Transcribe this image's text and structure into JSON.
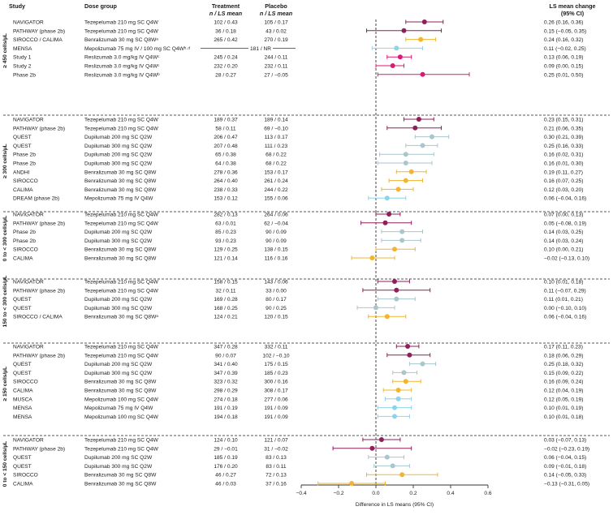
{
  "headers": {
    "study": "Study",
    "dose": "Dose group",
    "treatment_line1": "Treatment",
    "treatment_line2": "n / LS mean",
    "placebo_line1": "Placebo",
    "placebo_line2": "n / LS mean",
    "lsmc_line1": "LS mean change",
    "lsmc_line2": "(95% CI)"
  },
  "colors": {
    "tezepelumab": "#8e1f5a",
    "dupilumab": "#a8c6cc",
    "benralizumab": "#f2b530",
    "mepolizumab": "#8fd3e8",
    "reslizumab": "#d81b72"
  },
  "chart_data": {
    "type": "forest",
    "xlabel": "Difference in LS means (95% CI)",
    "xlim": [
      -0.4,
      0.6
    ],
    "xticks": [
      "−0.4",
      "−0.2",
      "0.0",
      "0.2",
      "0.4",
      "0.6"
    ],
    "tick_values": [
      -0.4,
      -0.2,
      0.0,
      0.2,
      0.4,
      0.6
    ],
    "reference_line": 0.0,
    "groups": [
      {
        "label": "≥ 450 cells/µL",
        "rows": [
          {
            "study": "NAVIGATOR",
            "dose": "Tezepelumab 210 mg SC Q4W",
            "trt": "102 / 0.43",
            "pbo": "105 / 0.17",
            "ci": "0.26 (0.16, 0.36)",
            "est": 0.26,
            "lo": 0.16,
            "hi": 0.36,
            "drug": "tezepelumab"
          },
          {
            "study": "PATHWAY (phase 2b)",
            "dose": "Tezepelumab 210 mg SC Q4W",
            "trt": "36 / 0.18",
            "pbo": "43 / 0.02",
            "ci": "0.15 (−0.05, 0.35)",
            "est": 0.15,
            "lo": -0.05,
            "hi": 0.35,
            "drug": "tezepelumab"
          },
          {
            "study": "SIROCCO / CALIMA",
            "dose": "Benralizumab 30 mg SC Q8Wᵃ",
            "trt": "265 / 0.42",
            "pbo": "270 / 0.19",
            "ci": "0.24 (0.16, 0.32)",
            "est": 0.24,
            "lo": 0.16,
            "hi": 0.32,
            "drug": "benralizumab"
          },
          {
            "study": "MENSA",
            "dose": "Mepolizumab 75 mg IV / 100 mg SC Q4Wᵇ·ᵈ",
            "merged": "181 / NR",
            "ci": "0.11 (−0.02, 0.25)",
            "est": 0.11,
            "lo": -0.02,
            "hi": 0.25,
            "drug": "mepolizumab"
          },
          {
            "study": "Study 1",
            "dose": "Reslizumab 3.0 mg/kg IV Q4Wᶜ",
            "trt": "245 / 0.24",
            "pbo": "244 / 0.11",
            "ci": "0.13 (0.06, 0.19)",
            "est": 0.13,
            "lo": 0.06,
            "hi": 0.19,
            "drug": "reslizumab"
          },
          {
            "study": "Study 2",
            "dose": "Reslizumab 3.0 mg/kg IV Q4Wᶜ",
            "trt": "232 / 0.20",
            "pbo": "232 / 0.11",
            "ci": "0.09 (0.00, 0.15)",
            "est": 0.09,
            "lo": 0.0,
            "hi": 0.15,
            "drug": "reslizumab"
          },
          {
            "study": "Phase 2b",
            "dose": "Reslizumab 3.0 mg/kg IV Q4Wᵇ",
            "trt": "28 / 0.27",
            "pbo": "27 / −0.05",
            "ci": "0.25 (0.01, 0.50)",
            "est": 0.25,
            "lo": 0.01,
            "hi": 0.5,
            "drug": "reslizumab"
          }
        ]
      },
      {
        "label": "≥ 300 cells/µL",
        "rows": [
          {
            "study": "NAVIGATOR",
            "dose": "Tezepelumab 210 mg SC Q4W",
            "trt": "189 / 0.37",
            "pbo": "189 / 0.14",
            "ci": "0.23 (0.15, 0.31)",
            "est": 0.23,
            "lo": 0.15,
            "hi": 0.31,
            "drug": "tezepelumab"
          },
          {
            "study": "PATHWAY (phase 2b)",
            "dose": "Tezepelumab 210 mg SC Q4W",
            "trt": "58 / 0.11",
            "pbo": "69 / −0.10",
            "ci": "0.21 (0.06, 0.35)",
            "est": 0.21,
            "lo": 0.06,
            "hi": 0.35,
            "drug": "tezepelumab"
          },
          {
            "study": "QUEST",
            "dose": "Dupilumab 200 mg SC Q2W",
            "trt": "206 / 0.47",
            "pbo": "113 / 0.17",
            "ci": "0.30 (0.21, 0.39)",
            "est": 0.3,
            "lo": 0.21,
            "hi": 0.39,
            "drug": "dupilumab"
          },
          {
            "study": "QUEST",
            "dose": "Dupilumab 300 mg SC Q2W",
            "trt": "207 / 0.48",
            "pbo": "111 / 0.23",
            "ci": "0.25 (0.16, 0.33)",
            "est": 0.25,
            "lo": 0.16,
            "hi": 0.33,
            "drug": "dupilumab"
          },
          {
            "study": "Phase 2b",
            "dose": "Dupilumab 200 mg SC Q2W",
            "trt": "65 / 0.38",
            "pbo": "68 / 0.22",
            "ci": "0.16 (0.02, 0.31)",
            "est": 0.16,
            "lo": 0.02,
            "hi": 0.31,
            "drug": "dupilumab"
          },
          {
            "study": "Phase 2b",
            "dose": "Dupilumab 300 mg SC Q2W",
            "trt": "64 / 0.38",
            "pbo": "68 / 0.22",
            "ci": "0.16 (0.01, 0.30)",
            "est": 0.16,
            "lo": 0.01,
            "hi": 0.3,
            "drug": "dupilumab"
          },
          {
            "study": "ANDHI",
            "dose": "Benralizumab 30 mg SC Q8W",
            "trt": "278 / 0.36",
            "pbo": "153 / 0.17",
            "ci": "0.19 (0.11, 0.27)",
            "est": 0.19,
            "lo": 0.11,
            "hi": 0.27,
            "drug": "benralizumab"
          },
          {
            "study": "SIROCCO",
            "dose": "Benralizumab 30 mg SC Q8W",
            "trt": "264 / 0.40",
            "pbo": "261 / 0.24",
            "ci": "0.16 (0.07, 0.25)",
            "est": 0.16,
            "lo": 0.07,
            "hi": 0.25,
            "drug": "benralizumab"
          },
          {
            "study": "CALIMA",
            "dose": "Benralizumab 30 mg SC Q8W",
            "trt": "238 / 0.33",
            "pbo": "244 / 0.22",
            "ci": "0.12 (0.03, 0.20)",
            "est": 0.12,
            "lo": 0.03,
            "hi": 0.2,
            "drug": "benralizumab"
          },
          {
            "study": "DREAM (phase 2b)",
            "dose": "Mepolizumab 75 mg IV Q4W",
            "trt": "153 / 0.12",
            "pbo": "155 / 0.06",
            "ci": "0.06 (−0.04, 0.16)",
            "est": 0.06,
            "lo": -0.04,
            "hi": 0.16,
            "drug": "mepolizumab"
          }
        ]
      },
      {
        "label": "0 to < 300 cells/µL",
        "rows": [
          {
            "study": "NAVIGATOR",
            "dose": "Tezepelumab 210 mg SC Q4W",
            "trt": "282 / 0.13",
            "pbo": "264 / 0.06",
            "ci": "0.07 (0.00, 0.13)",
            "est": 0.07,
            "lo": 0.0,
            "hi": 0.13,
            "drug": "tezepelumab"
          },
          {
            "study": "PATHWAY (phase 2b)",
            "dose": "Tezepelumab 210 mg SC Q4W",
            "trt": "63 / 0.01",
            "pbo": "62 / −0.04",
            "ci": "0.05 (−0.08, 0.19)",
            "est": 0.05,
            "lo": -0.08,
            "hi": 0.19,
            "drug": "tezepelumab"
          },
          {
            "study": "Phase 2b",
            "dose": "Dupilumab 200 mg SC Q2W",
            "trt": "85 / 0.23",
            "pbo": "90 / 0.09",
            "ci": "0.14 (0.03, 0.25)",
            "est": 0.14,
            "lo": 0.03,
            "hi": 0.25,
            "drug": "dupilumab"
          },
          {
            "study": "Phase 2b",
            "dose": "Dupilumab 300 mg SC Q2W",
            "trt": "93 / 0.23",
            "pbo": "90 / 0.09",
            "ci": "0.14 (0.03, 0.24)",
            "est": 0.14,
            "lo": 0.03,
            "hi": 0.24,
            "drug": "dupilumab"
          },
          {
            "study": "SIROCCO",
            "dose": "Benralizumab 30 mg SC Q8W",
            "trt": "129 / 0.25",
            "pbo": "138 / 0.15",
            "ci": "0.10 (0.00, 0.21)",
            "est": 0.1,
            "lo": 0.0,
            "hi": 0.21,
            "drug": "benralizumab"
          },
          {
            "study": "CALIMA",
            "dose": "Benralizumab 30 mg SC Q8W",
            "trt": "121 / 0.14",
            "pbo": "116 / 0.16",
            "ci": "−0.02 (−0.13, 0.10)",
            "est": -0.02,
            "lo": -0.13,
            "hi": 0.1,
            "drug": "benralizumab"
          }
        ]
      },
      {
        "label": "150 to < 300 cells/µL",
        "rows": [
          {
            "study": "NAVIGATOR",
            "dose": "Tezepelumab 210 mg SC Q4W",
            "trt": "158 / 0.15",
            "pbo": "143 / 0.06",
            "ci": "0.10 (0.01, 0.18)",
            "est": 0.1,
            "lo": 0.01,
            "hi": 0.18,
            "drug": "tezepelumab"
          },
          {
            "study": "PATHWAY (phase 2b)",
            "dose": "Tezepelumab 210 mg SC Q4W",
            "trt": "32 / 0.11",
            "pbo": "33 / 0.00",
            "ci": "0.11 (−0.07, 0.29)",
            "est": 0.11,
            "lo": -0.07,
            "hi": 0.29,
            "drug": "tezepelumab"
          },
          {
            "study": "QUEST",
            "dose": "Dupilumab 200 mg SC Q2W",
            "trt": "169 / 0.28",
            "pbo": "80 / 0.17",
            "ci": "0.11 (0.01, 0.21)",
            "est": 0.11,
            "lo": 0.01,
            "hi": 0.21,
            "drug": "dupilumab"
          },
          {
            "study": "QUEST",
            "dose": "Dupilumab 300 mg SC Q2W",
            "trt": "168 / 0.25",
            "pbo": "90 / 0.25",
            "ci": "0.00 (−0.10, 0.10)",
            "est": 0.0,
            "lo": -0.1,
            "hi": 0.1,
            "drug": "dupilumab"
          },
          {
            "study": "SIROCCO / CALIMA",
            "dose": "Benralizumab 30 mg SC Q8Wᵃ",
            "trt": "124 / 0.21",
            "pbo": "120 / 0.15",
            "ci": "0.06 (−0.04, 0.16)",
            "est": 0.06,
            "lo": -0.04,
            "hi": 0.16,
            "drug": "benralizumab"
          }
        ]
      },
      {
        "label": "≥ 150 cells/µL",
        "rows": [
          {
            "study": "NAVIGATOR",
            "dose": "Tezepelumab 210 mg SC Q4W",
            "trt": "347 / 0.28",
            "pbo": "332 / 0.11",
            "ci": "0.17 (0.11, 0.23)",
            "est": 0.17,
            "lo": 0.11,
            "hi": 0.23,
            "drug": "tezepelumab"
          },
          {
            "study": "PATHWAY (phase 2b)",
            "dose": "Tezepelumab 210 mg SC Q4W",
            "trt": "90 / 0.07",
            "pbo": "102 / −0.10",
            "ci": "0.18 (0.06, 0.29)",
            "est": 0.18,
            "lo": 0.06,
            "hi": 0.29,
            "drug": "tezepelumab"
          },
          {
            "study": "QUEST",
            "dose": "Dupilumab 200 mg SC Q2W",
            "trt": "341 / 0.40",
            "pbo": "175 / 0.15",
            "ci": "0.25 (0.18, 0.32)",
            "est": 0.25,
            "lo": 0.18,
            "hi": 0.32,
            "drug": "dupilumab"
          },
          {
            "study": "QUEST",
            "dose": "Dupilumab 300 mg SC Q2W",
            "trt": "347 / 0.39",
            "pbo": "185 / 0.23",
            "ci": "0.15 (0.09, 0.22)",
            "est": 0.15,
            "lo": 0.09,
            "hi": 0.22,
            "drug": "dupilumab"
          },
          {
            "study": "SIROCCO",
            "dose": "Benralizumab 30 mg SC Q8W",
            "trt": "323 / 0.32",
            "pbo": "300 / 0.16",
            "ci": "0.16 (0.09, 0.24)",
            "est": 0.16,
            "lo": 0.09,
            "hi": 0.24,
            "drug": "benralizumab"
          },
          {
            "study": "CALIMA",
            "dose": "Benralizumab 30 mg SC Q8W",
            "trt": "298 / 0.29",
            "pbo": "308 / 0.17",
            "ci": "0.12 (0.04, 0.19)",
            "est": 0.12,
            "lo": 0.04,
            "hi": 0.19,
            "drug": "benralizumab"
          },
          {
            "study": "MUSCA",
            "dose": "Mepolizumab 100 mg SC Q4W",
            "trt": "274 / 0.18",
            "pbo": "277 / 0.06",
            "ci": "0.12 (0.05, 0.19)",
            "est": 0.12,
            "lo": 0.05,
            "hi": 0.19,
            "drug": "mepolizumab"
          },
          {
            "study": "MENSA",
            "dose": "Mepolizumab 75 mg IV Q4W",
            "trt": "191 / 0.19",
            "pbo": "191 / 0.09",
            "ci": "0.10 (0.01, 0.19)",
            "est": 0.1,
            "lo": 0.01,
            "hi": 0.19,
            "drug": "mepolizumab"
          },
          {
            "study": "MENSA",
            "dose": "Mepolizumab 100 mg SC Q4W",
            "trt": "194 / 0.18",
            "pbo": "191 / 0.09",
            "ci": "0.10 (0.01, 0.18)",
            "est": 0.1,
            "lo": 0.01,
            "hi": 0.18,
            "drug": "mepolizumab"
          }
        ]
      },
      {
        "label": "0 to < 150 cells/µL",
        "rows": [
          {
            "study": "NAVIGATOR",
            "dose": "Tezepelumab 210 mg SC Q4W",
            "trt": "124 / 0.10",
            "pbo": "121 / 0.07",
            "ci": "0.03 (−0.07, 0.13)",
            "est": 0.03,
            "lo": -0.07,
            "hi": 0.13,
            "drug": "tezepelumab"
          },
          {
            "study": "PATHWAY (phase 2b)",
            "dose": "Tezepelumab 210 mg SC Q4W",
            "trt": "29 / −0.01",
            "pbo": "31 / −0.02",
            "ci": "−0.02 (−0.23, 0.19)",
            "est": -0.02,
            "lo": -0.23,
            "hi": 0.19,
            "drug": "tezepelumab"
          },
          {
            "study": "QUEST",
            "dose": "Dupilumab 200 mg SC Q2W",
            "trt": "185 / 0.19",
            "pbo": "83 / 0.13",
            "ci": "0.06 (−0.04, 0.15)",
            "est": 0.06,
            "lo": -0.04,
            "hi": 0.15,
            "drug": "dupilumab"
          },
          {
            "study": "QUEST",
            "dose": "Dupilumab 300 mg SC Q2W",
            "trt": "176 / 0.20",
            "pbo": "83 / 0.11",
            "ci": "0.09 (−0.01, 0.18)",
            "est": 0.09,
            "lo": -0.01,
            "hi": 0.18,
            "drug": "dupilumab"
          },
          {
            "study": "SIROCCO",
            "dose": "Benralizumab 30 mg SC Q8W",
            "trt": "46 / 0.27",
            "pbo": "72 / 0.13",
            "ci": "0.14 (−0.05, 0.33)",
            "est": 0.14,
            "lo": -0.05,
            "hi": 0.33,
            "drug": "benralizumab"
          },
          {
            "study": "CALIMA",
            "dose": "Benralizumab 30 mg SC Q8W",
            "trt": "46 / 0.03",
            "pbo": "37 / 0.16",
            "ci": "−0.13 (−0.31, 0.05)",
            "est": -0.13,
            "lo": -0.31,
            "hi": 0.05,
            "drug": "benralizumab"
          }
        ]
      }
    ]
  }
}
